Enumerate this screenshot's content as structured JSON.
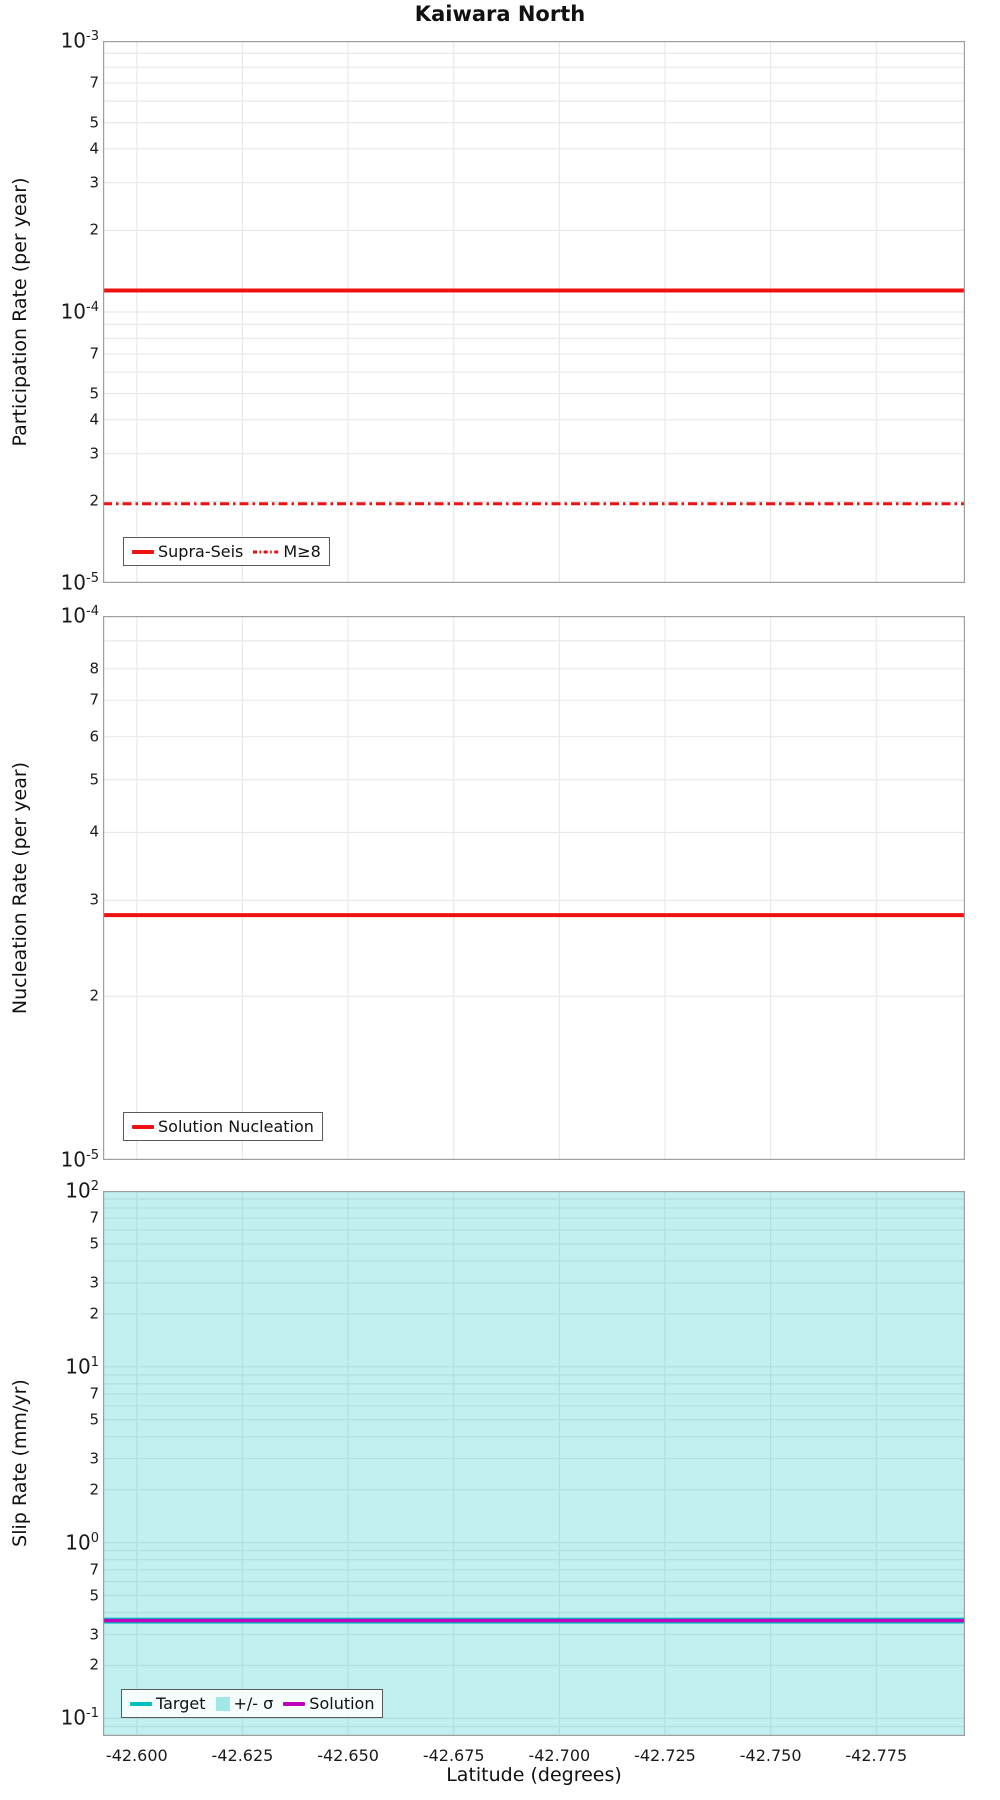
{
  "figure": {
    "title": "Kaiwara North",
    "xlabel": "Latitude (degrees)"
  },
  "colors": {
    "red": "#ee1111",
    "teal": "#00bfbf",
    "magenta": "#bf00bf",
    "band": "rgba(0,191,191,0.24)",
    "band_swatch": "rgba(0,191,191,0.35)",
    "grid": "#e9e9e9",
    "frame": "#9f9f9f"
  },
  "x_axis": {
    "range": [
      -42.592,
      -42.796
    ],
    "tick_values": [
      -42.6,
      -42.625,
      -42.65,
      -42.675,
      -42.7,
      -42.725,
      -42.75,
      -42.775
    ],
    "tick_labels": [
      "-42.600",
      "-42.625",
      "-42.650",
      "-42.675",
      "-42.700",
      "-42.725",
      "-42.750",
      "-42.775"
    ]
  },
  "chart_data": [
    {
      "type": "line",
      "ylabel": "Participation Rate (per year)",
      "yscale": "log",
      "ylog_range": [
        -3,
        -5
      ],
      "ylim": [
        0.001,
        1e-05
      ],
      "minor_tick_labels": [
        7,
        5,
        4,
        3,
        2
      ],
      "grid": true,
      "series": [
        {
          "name": "Supra-Seis",
          "color_key": "red",
          "style": "solid",
          "width": 4,
          "y_value": 0.00012,
          "x_extent": "full"
        },
        {
          "name": "M≥8",
          "color_key": "red",
          "style": "dashdot",
          "width": 3,
          "y_value": 1.96e-05,
          "x_extent": "full"
        }
      ],
      "legend": [
        {
          "label": "Supra-Seis",
          "swatch": "line-solid",
          "color_key": "red"
        },
        {
          "label": "M≥8",
          "swatch": "line-dashdot",
          "color_key": "red"
        }
      ],
      "legend_position": "lower left"
    },
    {
      "type": "line",
      "ylabel": "Nucleation Rate (per year)",
      "yscale": "log",
      "ylog_range": [
        -4,
        -5
      ],
      "ylim": [
        0.0001,
        1e-05
      ],
      "minor_tick_labels": [
        8,
        7,
        6,
        5,
        4,
        3,
        2
      ],
      "grid": true,
      "series": [
        {
          "name": "Solution Nucleation",
          "color_key": "red",
          "style": "solid",
          "width": 4,
          "y_value": 2.82e-05,
          "x_extent": "full"
        }
      ],
      "legend": [
        {
          "label": "Solution Nucleation",
          "swatch": "line-solid",
          "color_key": "red"
        }
      ],
      "legend_position": "lower left"
    },
    {
      "type": "line",
      "ylabel": "Slip Rate (mm/yr)",
      "yscale": "log",
      "ylog_range": [
        2,
        -1.1
      ],
      "ylim": [
        100,
        0.0794
      ],
      "minor_tick_labels": [
        7,
        5,
        3,
        2
      ],
      "grid": true,
      "band": {
        "label": "+/- σ",
        "extent": "full_y_range",
        "color_key": "band"
      },
      "series": [
        {
          "name": "Target",
          "color_key": "teal",
          "style": "solid",
          "width": 6,
          "y_value": 0.36,
          "x_extent": "full"
        },
        {
          "name": "Solution",
          "color_key": "magenta",
          "style": "solid",
          "width": 3.5,
          "y_value": 0.36,
          "x_extent": "full"
        }
      ],
      "legend": [
        {
          "label": "Target",
          "swatch": "line-solid",
          "color_key": "teal"
        },
        {
          "label": "+/- σ",
          "swatch": "patch",
          "color_key": "band_swatch"
        },
        {
          "label": "Solution",
          "swatch": "line-solid",
          "color_key": "magenta"
        }
      ],
      "legend_position": "lower left"
    }
  ]
}
